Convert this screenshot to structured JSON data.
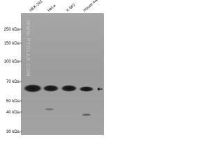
{
  "lanes": [
    "HEK-293",
    "HeLa",
    "K-562",
    "mouse liver"
  ],
  "markers": [
    "250 kDa",
    "150 kDa",
    "100 kDa",
    "70 kDa",
    "50 kDa",
    "40 kDa",
    "30 kDa"
  ],
  "watermark": "WWW.PTGLAB.COM"
}
